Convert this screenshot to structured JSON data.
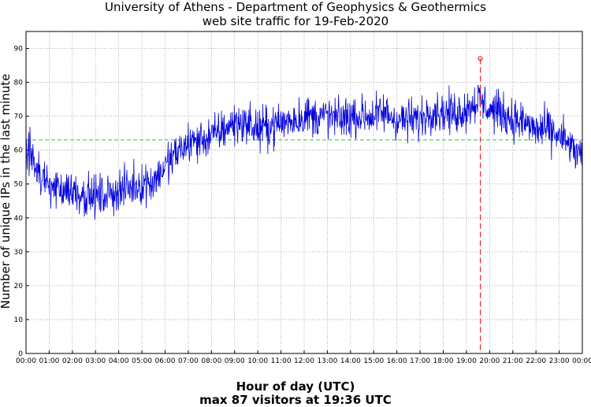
{
  "chart_data": {
    "type": "line",
    "title": "University of Athens - Department of Geophysics & Geothermics",
    "subtitle": "web site traffic for 19-Feb-2020",
    "xlabel": "Hour of day (UTC)",
    "ylabel": "Number of unique IPs in the last minute",
    "footer": "max 87 visitors at 19:36 UTC",
    "x_tick_labels": [
      "00:00",
      "01:00",
      "02:00",
      "03:00",
      "04:00",
      "05:00",
      "06:00",
      "07:00",
      "08:00",
      "09:00",
      "10:00",
      "11:00",
      "12:00",
      "13:00",
      "14:00",
      "15:00",
      "16:00",
      "17:00",
      "18:00",
      "19:00",
      "20:00",
      "21:00",
      "22:00",
      "23:00",
      "00:00"
    ],
    "y_tick_labels": [
      "0",
      "10",
      "20",
      "30",
      "40",
      "50",
      "60",
      "70",
      "80",
      "90"
    ],
    "xlim_hours": [
      0,
      24
    ],
    "ylim": [
      0,
      95
    ],
    "grid": true,
    "mean_line": {
      "value": 63,
      "color": "#33cc33",
      "style": "dashed"
    },
    "peak": {
      "time_hours": 19.6,
      "value": 87,
      "color": "#ee2222"
    },
    "series": [
      {
        "color": "#0000dd",
        "noise_amplitude": 6,
        "trend_hours": [
          0,
          0.3,
          0.6,
          1,
          1.5,
          2,
          2.5,
          3,
          3.5,
          4,
          4.5,
          5,
          5.5,
          6,
          6.5,
          7,
          7.5,
          8,
          8.5,
          9,
          9.5,
          10,
          10.5,
          11,
          11.5,
          12,
          12.5,
          13,
          13.5,
          14,
          14.5,
          15,
          15.5,
          16,
          16.5,
          17,
          17.5,
          18,
          18.5,
          19,
          19.5,
          20,
          20.5,
          21,
          21.5,
          22,
          22.5,
          23,
          23.5,
          24
        ],
        "trend_values": [
          59,
          58,
          52,
          49,
          49,
          48,
          47,
          46,
          47,
          48,
          49,
          50,
          51,
          55,
          59,
          62,
          63,
          64,
          66,
          68,
          68,
          66,
          67,
          68,
          69,
          70,
          70,
          70,
          69,
          70,
          70,
          70,
          71,
          69,
          69,
          69,
          72,
          71,
          71,
          72,
          75,
          72,
          71,
          69,
          68,
          66,
          66,
          64,
          61,
          57
        ]
      }
    ]
  }
}
